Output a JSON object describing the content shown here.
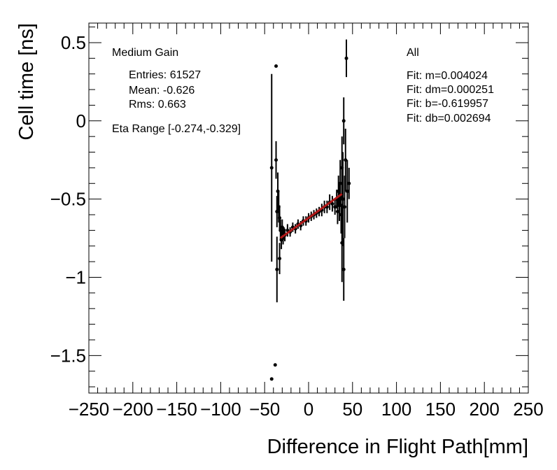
{
  "chart_data": {
    "type": "scatter",
    "x_label": "Difference in Flight Path[mm]",
    "y_label": "Cell time [ns]",
    "annotations": [
      "Medium Gain",
      "Entries: 61527",
      "Mean: -0.626",
      "Rms: 0.663",
      "Eta Range [-0.274,-0.329]",
      "All",
      "Fit: m=0.004024",
      "Fit: dm=0.000251",
      "Fit: b=-0.619957",
      "Fit: db=0.002694"
    ],
    "xlim": [
      -250,
      250
    ],
    "ylim": [
      -1.74,
      0.625
    ],
    "xticks": [
      {
        "value": -250,
        "label": "−250"
      },
      {
        "value": -200,
        "label": "−200"
      },
      {
        "value": -150,
        "label": "−150"
      },
      {
        "value": -100,
        "label": "−100"
      },
      {
        "value": -50,
        "label": "−50"
      },
      0,
      50,
      100,
      150,
      200,
      250
    ],
    "yticks": [
      0.5,
      0,
      {
        "value": -0.5,
        "label": "−0.5"
      },
      {
        "value": -1,
        "label": "−1"
      },
      {
        "value": -1.5,
        "label": "−1.5"
      }
    ],
    "xminorticks": [
      -240,
      -230,
      -220,
      -210,
      -190,
      -180,
      -170,
      -160,
      -140,
      -130,
      -120,
      -110,
      -90,
      -80,
      -70,
      -60,
      -40,
      -30,
      -20,
      -10,
      10,
      20,
      30,
      40,
      60,
      70,
      80,
      90,
      110,
      120,
      130,
      140,
      160,
      170,
      180,
      190,
      210,
      220,
      230,
      240
    ],
    "yminorticks": [
      0.6,
      0.4,
      0.3,
      0.2,
      0.1,
      -0.1,
      -0.2,
      -0.3,
      -0.4,
      -0.6,
      -0.7,
      -0.8,
      -0.9,
      -1.1,
      -1.2,
      -1.3,
      -1.4,
      -1.6,
      -1.7
    ],
    "series": [
      {
        "color": "#000000",
        "x": [
          -42,
          -42,
          -38,
          -37,
          -36,
          -37,
          -36,
          -35,
          -34,
          -33,
          -33,
          -32,
          -31,
          -30,
          -29,
          -28,
          -27,
          -24,
          -21,
          -18,
          -15,
          -12,
          -9,
          -6,
          -3,
          0,
          3,
          6,
          9,
          12,
          15,
          18,
          21,
          24,
          27,
          30,
          32,
          33,
          34,
          35,
          36,
          37,
          38,
          38,
          39,
          40,
          40,
          41,
          42,
          43,
          44,
          46
        ],
        "values": [
          -0.3,
          -1.65,
          -1.56,
          0.35,
          -0.95,
          -0.25,
          -0.58,
          -0.45,
          -0.55,
          -0.62,
          -0.88,
          -0.7,
          -0.76,
          -0.68,
          -0.74,
          -0.72,
          -0.73,
          -0.7,
          -0.71,
          -0.68,
          -0.69,
          -0.66,
          -0.67,
          -0.64,
          -0.64,
          -0.62,
          -0.61,
          -0.6,
          -0.59,
          -0.58,
          -0.57,
          -0.55,
          -0.55,
          -0.52,
          -0.53,
          -0.55,
          -0.5,
          -0.58,
          -0.45,
          -0.52,
          -0.4,
          -0.6,
          -0.3,
          -0.78,
          -0.5,
          0.0,
          -0.95,
          -0.55,
          -0.25,
          0.4,
          -0.45,
          -0.4
        ],
        "errors": [
          0.6,
          0,
          0,
          0,
          0.21,
          0.12,
          0.1,
          0.12,
          0.1,
          0.08,
          0.1,
          0.07,
          0.06,
          0.05,
          0.05,
          0.04,
          0.04,
          0.04,
          0.03,
          0.03,
          0.03,
          0.03,
          0.03,
          0.03,
          0.03,
          0.03,
          0.03,
          0.03,
          0.03,
          0.03,
          0.04,
          0.04,
          0.04,
          0.05,
          0.05,
          0.05,
          0.06,
          0.08,
          0.1,
          0.12,
          0.15,
          0.12,
          0.2,
          0.25,
          0.3,
          0.15,
          0.2,
          0.2,
          0.2,
          0.12,
          0.2,
          0.1
        ]
      }
    ],
    "fit": {
      "color": "#b01818",
      "x": [
        -32,
        38
      ],
      "values": [
        -0.749,
        -0.467
      ]
    }
  }
}
